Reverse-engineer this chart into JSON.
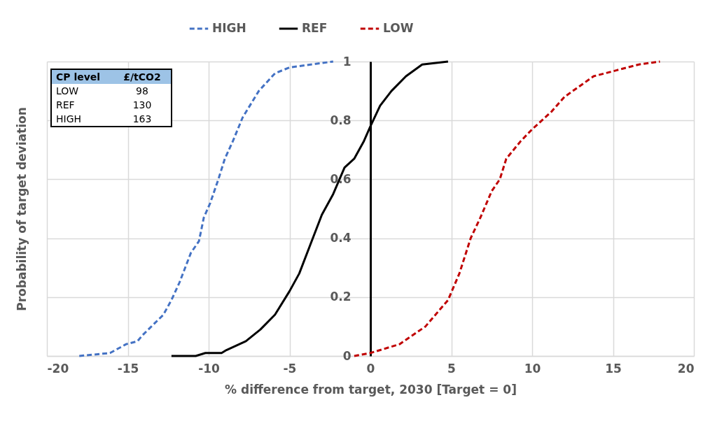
{
  "chart_data": {
    "type": "line",
    "xlabel": "% difference from target, 2030    [Target = 0]",
    "ylabel": "Probability of target deviation",
    "series": [
      {
        "name": "HIGH",
        "color": "#4472c4",
        "line_style": "dashed",
        "x": [
          -18.0,
          -16.1,
          -15.1,
          -14.4,
          -14.1,
          -12.8,
          -12.3,
          -11.8,
          -11.1,
          -10.6,
          -10.3,
          -9.9,
          -9.4,
          -9.0,
          -8.5,
          -7.9,
          -6.9,
          -5.9,
          -5.0,
          -2.3
        ],
        "values": [
          0,
          0.01,
          0.04,
          0.05,
          0.07,
          0.14,
          0.19,
          0.25,
          0.35,
          0.39,
          0.47,
          0.52,
          0.6,
          0.67,
          0.73,
          0.81,
          0.9,
          0.96,
          0.98,
          1.0
        ]
      },
      {
        "name": "REF",
        "color": "#000000",
        "line_style": "solid",
        "x": [
          -12.3,
          -10.8,
          -10.2,
          -9.2,
          -8.9,
          -7.7,
          -6.8,
          -5.9,
          -5.0,
          -4.4,
          -3.7,
          -3.0,
          -2.3,
          -1.6,
          -1.0,
          -0.4,
          0,
          0.6,
          1.3,
          2.2,
          3.2,
          4.8
        ],
        "values": [
          0,
          0.0,
          0.01,
          0.01,
          0.02,
          0.05,
          0.09,
          0.14,
          0.22,
          0.28,
          0.38,
          0.48,
          0.55,
          0.64,
          0.67,
          0.73,
          0.78,
          0.85,
          0.9,
          0.95,
          0.99,
          1.0
        ]
      },
      {
        "name": "LOW",
        "color": "#c00000",
        "line_style": "dashed",
        "x": [
          -1.0,
          0,
          1.8,
          3.4,
          4.8,
          5.5,
          6.2,
          6.8,
          7.5,
          8.0,
          8.4,
          9.3,
          10.0,
          11.2,
          12.0,
          13.8,
          15.2,
          16.6,
          17.9
        ],
        "values": [
          0,
          0.01,
          0.04,
          0.1,
          0.19,
          0.28,
          0.4,
          0.47,
          0.56,
          0.6,
          0.67,
          0.73,
          0.77,
          0.83,
          0.88,
          0.95,
          0.97,
          0.99,
          1.0
        ]
      }
    ],
    "xlim": [
      -20,
      20
    ],
    "xticks": [
      -20,
      -15,
      -10,
      -5,
      0,
      5,
      10,
      15,
      20
    ],
    "ylim": [
      0,
      1
    ],
    "yticks": [
      0,
      0.2,
      0.4,
      0.6,
      0.8,
      1
    ],
    "grid": true,
    "legend": "top",
    "annotations": [
      "CP level",
      "£/tCO2",
      "LOW",
      "98",
      "REF",
      "130",
      "HIGH",
      "163"
    ]
  }
}
